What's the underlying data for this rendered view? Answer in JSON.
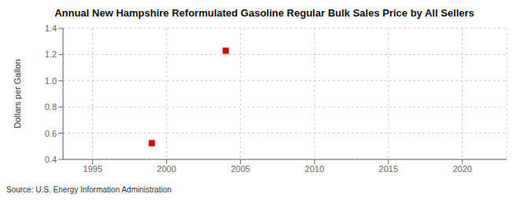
{
  "chart_data": {
    "type": "scatter",
    "title": "Annual New Hampshire Reformulated Gasoline Regular Bulk Sales Price by All Sellers",
    "ylabel": "Dollars per Gallon",
    "annotations": [
      "Source: U.S. Energy Information Administration"
    ],
    "x": [
      1999,
      2004
    ],
    "values": [
      0.524,
      1.229
    ],
    "color": "#cc1111",
    "marker": "square",
    "xlim": [
      1993,
      2023
    ],
    "ylim": [
      0.4,
      1.4
    ],
    "xticks": [
      1995,
      2000,
      2005,
      2010,
      2015,
      2020
    ],
    "yticks": [
      0.4,
      0.6,
      0.8,
      {
        "value": 1.0,
        "label": "1.0"
      },
      1.2,
      1.4
    ],
    "grid": true
  }
}
